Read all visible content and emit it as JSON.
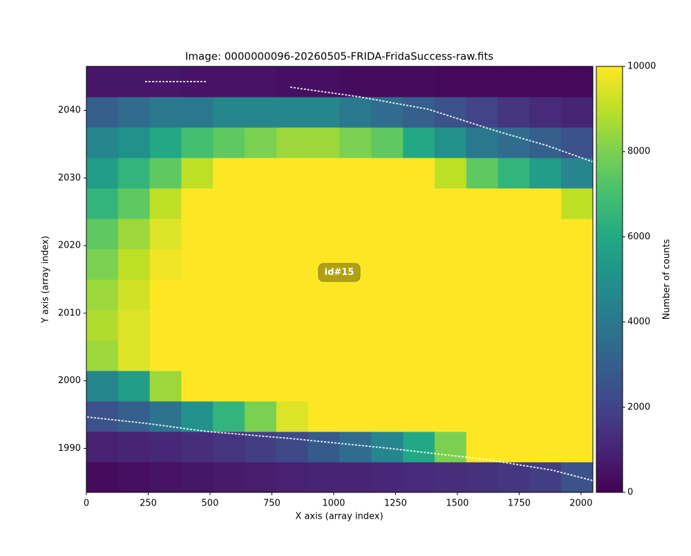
{
  "chart_data": {
    "type": "heatmap",
    "title": "Image: 0000000096-20260505-FRIDA-FridaSuccess-raw.fits",
    "xlabel": "X axis (array index)",
    "ylabel": "Y axis (array index)",
    "colorbar_label": "Number of counts",
    "colormap": "viridis",
    "annotation": "id#15",
    "xlim": [
      0,
      2048
    ],
    "ylim": [
      1983.5,
      2046.5
    ],
    "xticks": [
      0,
      250,
      500,
      750,
      1000,
      1250,
      1500,
      1750,
      2000
    ],
    "yticks": [
      1990,
      2000,
      2010,
      2020,
      2030,
      2040
    ],
    "colorbar_lim": [
      0,
      10000
    ],
    "colorbar_ticks": [
      0,
      2000,
      4000,
      6000,
      8000,
      10000
    ],
    "x_bins": [
      0,
      128,
      256,
      384,
      512,
      640,
      768,
      896,
      1024,
      1152,
      1280,
      1408,
      1536,
      1664,
      1792,
      1920,
      2048
    ],
    "y_bins": [
      1983.5,
      1988,
      1992.5,
      1997,
      2001.5,
      2006,
      2010.5,
      2015,
      2019.5,
      2024,
      2028.5,
      2033,
      2037.5,
      2042,
      2046.5
    ],
    "values": [
      [
        300,
        400,
        500,
        600,
        700,
        800,
        900,
        1000,
        1000,
        1100,
        1200,
        1300,
        1400,
        1600,
        1800,
        2500
      ],
      [
        900,
        1000,
        1100,
        1300,
        1500,
        1800,
        2200,
        2800,
        3500,
        4500,
        6000,
        8000,
        10000,
        10000,
        10000,
        10000
      ],
      [
        2500,
        3000,
        3800,
        5000,
        6500,
        8000,
        9500,
        10000,
        10000,
        10000,
        10000,
        10000,
        10000,
        10000,
        10000,
        10000
      ],
      [
        4500,
        5500,
        8500,
        10000,
        10000,
        10000,
        10000,
        10000,
        10000,
        10000,
        10000,
        10000,
        10000,
        10000,
        10000,
        10000
      ],
      [
        8500,
        9500,
        10000,
        10000,
        10000,
        10000,
        10000,
        10000,
        10000,
        10000,
        10000,
        10000,
        10000,
        10000,
        10000,
        10000
      ],
      [
        8800,
        9500,
        10000,
        10000,
        10000,
        10000,
        10000,
        10000,
        10000,
        10000,
        10000,
        10000,
        10000,
        10000,
        10000,
        10000
      ],
      [
        8500,
        9300,
        10000,
        10000,
        10000,
        10000,
        10000,
        10000,
        10000,
        10000,
        10000,
        10000,
        10000,
        10000,
        10000,
        10000
      ],
      [
        8000,
        9000,
        9800,
        10000,
        10000,
        10000,
        10000,
        10000,
        10000,
        10000,
        10000,
        10000,
        10000,
        10000,
        10000,
        10000
      ],
      [
        7500,
        8500,
        9500,
        10000,
        10000,
        10000,
        10000,
        10000,
        10000,
        10000,
        10000,
        10000,
        10000,
        10000,
        10000,
        10000
      ],
      [
        6500,
        7500,
        9000,
        10000,
        10000,
        10000,
        10000,
        10000,
        10000,
        10000,
        10000,
        10000,
        10000,
        10000,
        10000,
        9000
      ],
      [
        5500,
        6500,
        7500,
        9000,
        10000,
        10000,
        10000,
        10000,
        10000,
        10000,
        10000,
        9000,
        7500,
        6500,
        5500,
        4500
      ],
      [
        4500,
        5000,
        6000,
        7000,
        7500,
        8000,
        8500,
        8500,
        8000,
        7500,
        6000,
        5000,
        4000,
        3500,
        3000,
        2500
      ],
      [
        3000,
        3500,
        4000,
        4000,
        4500,
        4500,
        4500,
        4500,
        4000,
        3500,
        3000,
        2500,
        2000,
        1500,
        1200,
        1000
      ],
      [
        600,
        600,
        600,
        500,
        500,
        500,
        400,
        400,
        300,
        300,
        300,
        200,
        200,
        200,
        200,
        200
      ]
    ]
  }
}
